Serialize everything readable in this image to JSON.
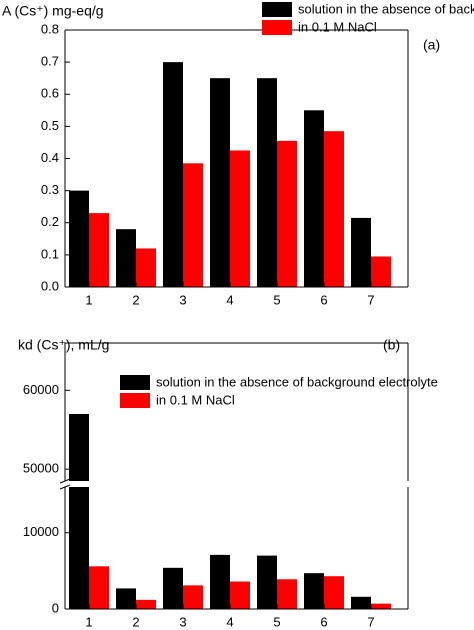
{
  "chart_data": [
    {
      "type": "bar",
      "ylabel": "A (Cs⁺) mg-eq/g",
      "annotation": "(a)",
      "categories": [
        "1",
        "2",
        "3",
        "4",
        "5",
        "6",
        "7"
      ],
      "series": [
        {
          "name": "solution in the absence of background electrolyte",
          "color": "#000000",
          "values": [
            0.3,
            0.18,
            0.7,
            0.65,
            0.65,
            0.55,
            0.215
          ]
        },
        {
          "name": "in 0.1 M NaCl",
          "color": "#ff0000",
          "values": [
            0.23,
            0.12,
            0.385,
            0.425,
            0.455,
            0.485,
            0.095
          ]
        }
      ],
      "ylim": [
        0,
        0.8
      ],
      "yticks": [
        {
          "value": 0,
          "label": "0.0"
        },
        0.1,
        0.2,
        0.3,
        0.4,
        0.5,
        0.6,
        0.7,
        0.8
      ],
      "legend": "upper right"
    },
    {
      "type": "bar",
      "ylabel": "kd (Cs⁺), mL/g",
      "annotation": "(b)",
      "categories": [
        "1",
        "2",
        "3",
        "4",
        "5",
        "6",
        "7"
      ],
      "series": [
        {
          "name": "solution in the absence of background electrolyte",
          "color": "#000000",
          "values": [
            57000,
            2700,
            5400,
            7100,
            7000,
            4700,
            1600
          ]
        },
        {
          "name": "in 0.1 M NaCl",
          "color": "#ff0000",
          "values": [
            5600,
            1200,
            3100,
            3600,
            3900,
            4300,
            700
          ]
        }
      ],
      "ylim": [
        0,
        66000
      ],
      "y_break": [
        16000,
        48500
      ],
      "yticks": [
        0,
        10000,
        50000,
        60000
      ],
      "legend": "upper left"
    }
  ]
}
